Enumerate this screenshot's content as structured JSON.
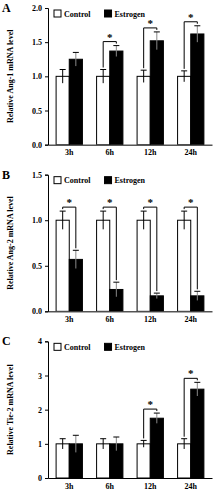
{
  "chart_data": [
    {
      "type": "bar",
      "title": "A",
      "y_label": "Relative Ang-1 mRNA level",
      "categories": [
        "3h",
        "6h",
        "12h",
        "24h"
      ],
      "series": [
        {
          "name": "Control",
          "color": "#ffffff",
          "values": [
            1.0,
            1.0,
            1.0,
            1.0
          ],
          "errors": [
            0.1,
            0.1,
            0.09,
            0.08
          ]
        },
        {
          "name": "Estrogen",
          "color": "#000000",
          "values": [
            1.25,
            1.37,
            1.52,
            1.62
          ],
          "errors": [
            0.1,
            0.08,
            0.13,
            0.12
          ]
        }
      ],
      "significance": [
        {
          "category": "6h",
          "label": "*"
        },
        {
          "category": "12h",
          "label": "*"
        },
        {
          "category": "24h",
          "label": "*"
        }
      ],
      "ylim": [
        0,
        2
      ],
      "yticks": [
        {
          "value": 0,
          "label": "0.0"
        },
        {
          "value": 0.5,
          "label": "0.5"
        },
        {
          "value": 1,
          "label": "1.0"
        },
        {
          "value": 1.5,
          "label": "1.5"
        },
        {
          "value": 2,
          "label": "2.0"
        }
      ],
      "legend": "upper left"
    },
    {
      "type": "bar",
      "title": "B",
      "y_label": "Relative Ang-2 mRNA level",
      "categories": [
        "3h",
        "6h",
        "12h",
        "24h"
      ],
      "series": [
        {
          "name": "Control",
          "color": "#ffffff",
          "values": [
            1.0,
            1.0,
            1.0,
            1.0
          ],
          "errors": [
            0.1,
            0.1,
            0.1,
            0.1
          ]
        },
        {
          "name": "Estrogen",
          "color": "#000000",
          "values": [
            0.57,
            0.24,
            0.17,
            0.17
          ],
          "errors": [
            0.1,
            0.08,
            0.03,
            0.05
          ]
        }
      ],
      "significance": [
        {
          "category": "3h",
          "label": "*"
        },
        {
          "category": "6h",
          "label": "*"
        },
        {
          "category": "12h",
          "label": "*"
        },
        {
          "category": "24h",
          "label": "*"
        }
      ],
      "ylim": [
        0,
        1.5
      ],
      "yticks": [
        {
          "value": 0,
          "label": "0.0"
        },
        {
          "value": 0.5,
          "label": "0.5"
        },
        {
          "value": 1,
          "label": "1.0"
        },
        {
          "value": 1.5,
          "label": "1.5"
        }
      ],
      "legend": "upper left"
    },
    {
      "type": "bar",
      "title": "C",
      "y_label": "Relative Tie-2 mRNA level",
      "categories": [
        "3h",
        "6h",
        "12h",
        "24h"
      ],
      "series": [
        {
          "name": "Control",
          "color": "#ffffff",
          "values": [
            1.0,
            1.0,
            1.0,
            1.0
          ],
          "errors": [
            0.15,
            0.15,
            0.1,
            0.15
          ]
        },
        {
          "name": "Estrogen",
          "color": "#000000",
          "values": [
            1.0,
            1.0,
            1.75,
            2.6
          ],
          "errors": [
            0.25,
            0.2,
            0.15,
            0.2
          ]
        }
      ],
      "significance": [
        {
          "category": "12h",
          "label": "*"
        },
        {
          "category": "24h",
          "label": "*"
        }
      ],
      "ylim": [
        0,
        4
      ],
      "yticks": [
        0,
        1,
        2,
        3,
        4
      ],
      "legend": "upper left"
    }
  ]
}
